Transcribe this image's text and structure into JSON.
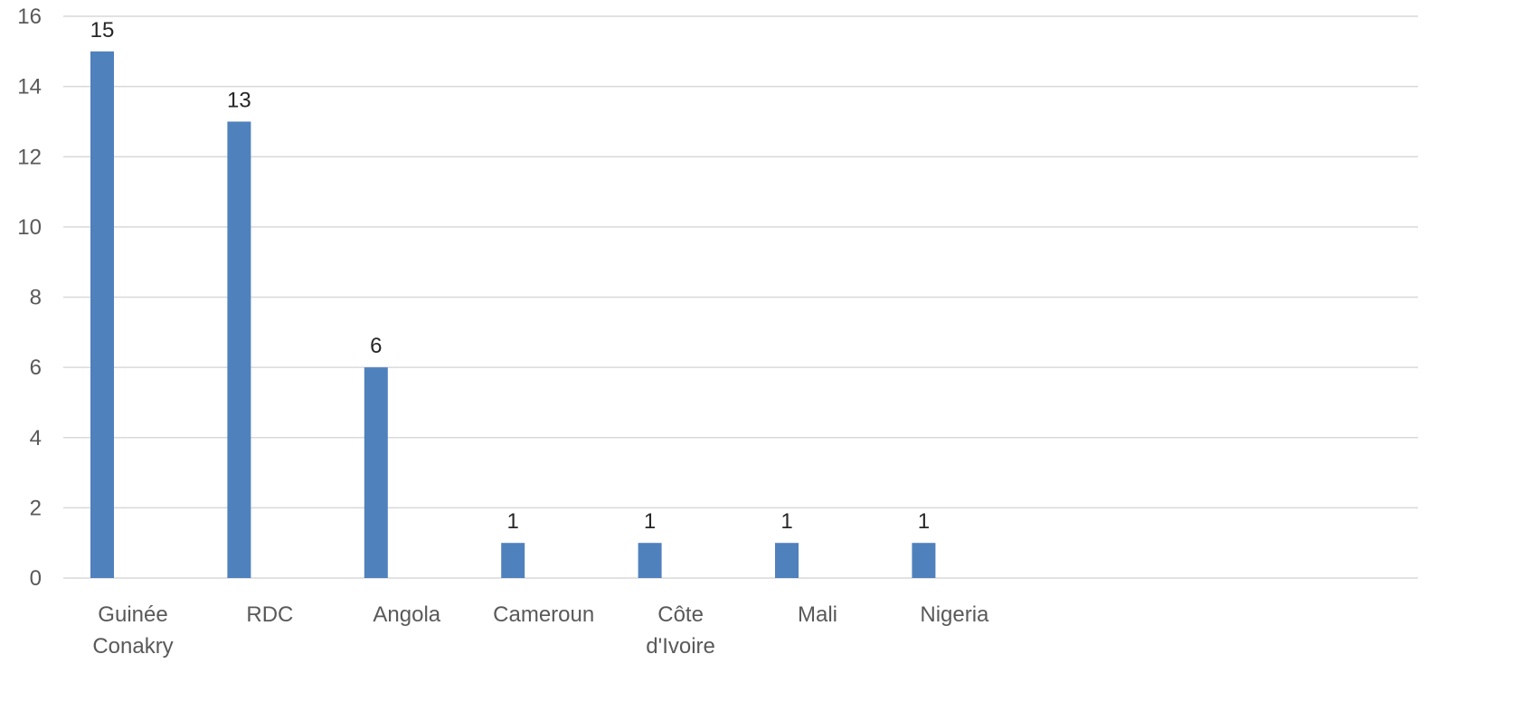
{
  "chart_data": {
    "type": "bar",
    "categories": [
      "Guinée Conakry",
      "RDC",
      "Angola",
      "Cameroun",
      "Côte d'Ivoire",
      "Mali",
      "Nigeria"
    ],
    "category_lines": [
      [
        "Guinée",
        "Conakry"
      ],
      [
        "RDC"
      ],
      [
        "Angola"
      ],
      [
        "Cameroun"
      ],
      [
        "Côte",
        "d'Ivoire"
      ],
      [
        "Mali"
      ],
      [
        "Nigeria"
      ]
    ],
    "values": [
      15,
      13,
      6,
      1,
      1,
      1,
      1
    ],
    "data_labels": [
      "15",
      "13",
      "6",
      "1",
      "1",
      "1",
      "1"
    ],
    "ylim": [
      0,
      16
    ],
    "yticks": [
      0,
      2,
      4,
      6,
      8,
      10,
      12,
      14,
      16
    ],
    "ytick_labels": [
      "0",
      "2",
      "4",
      "6",
      "8",
      "10",
      "12",
      "14",
      "16"
    ],
    "grid": true,
    "bar_color": "#4f81bd",
    "title": "",
    "xlabel": "",
    "ylabel": ""
  }
}
